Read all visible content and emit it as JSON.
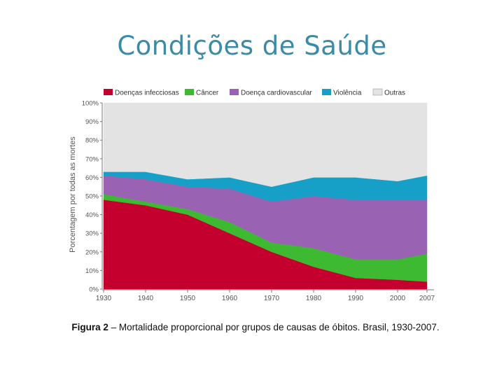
{
  "page": {
    "title": "Condições de Saúde",
    "caption_prefix": "Figura 2",
    "caption_text": " – Mortalidade proporcional por grupos de causas de óbitos. Brasil, 1930-2007."
  },
  "colors": {
    "infecciosas": "#c4002f",
    "cancer": "#3dba32",
    "cardiovascular": "#9a62b3",
    "violencia": "#16a0c8",
    "outras": "#e3e3e3",
    "axis": "#777777",
    "tick_text": "#555555"
  },
  "chart_data": {
    "type": "area",
    "stacked": true,
    "title": "",
    "xlabel": "",
    "ylabel": "Porcentagem por todas as mortes",
    "x": [
      1930,
      1940,
      1950,
      1960,
      1970,
      1980,
      1990,
      2000,
      2007
    ],
    "xticks": [
      "1930",
      "1940",
      "1950",
      "1960",
      "1970",
      "1980",
      "1990",
      "2000",
      "2007"
    ],
    "yticks": [
      "0%",
      "10%",
      "20%",
      "30%",
      "40%",
      "50%",
      "60%",
      "70%",
      "80%",
      "90%",
      "100%"
    ],
    "ylim": [
      0,
      100
    ],
    "legend_position": "top",
    "series": [
      {
        "key": "infecciosas",
        "name": "Doenças infecciosas",
        "values": [
          48,
          45,
          40,
          30,
          20,
          12,
          6,
          5,
          4
        ]
      },
      {
        "key": "cancer",
        "name": "Câncer",
        "values": [
          3,
          2,
          3,
          6,
          5,
          10,
          10,
          11,
          15
        ]
      },
      {
        "key": "cardiovascular",
        "name": "Doença cardiovascular",
        "values": [
          10,
          12,
          12,
          18,
          22,
          28,
          32,
          32,
          29
        ]
      },
      {
        "key": "violencia",
        "name": "Violência",
        "values": [
          2,
          4,
          4,
          6,
          8,
          10,
          12,
          10,
          13
        ]
      },
      {
        "key": "outras",
        "name": "Outras",
        "values": [
          37,
          37,
          41,
          40,
          45,
          40,
          40,
          42,
          39
        ]
      }
    ]
  }
}
